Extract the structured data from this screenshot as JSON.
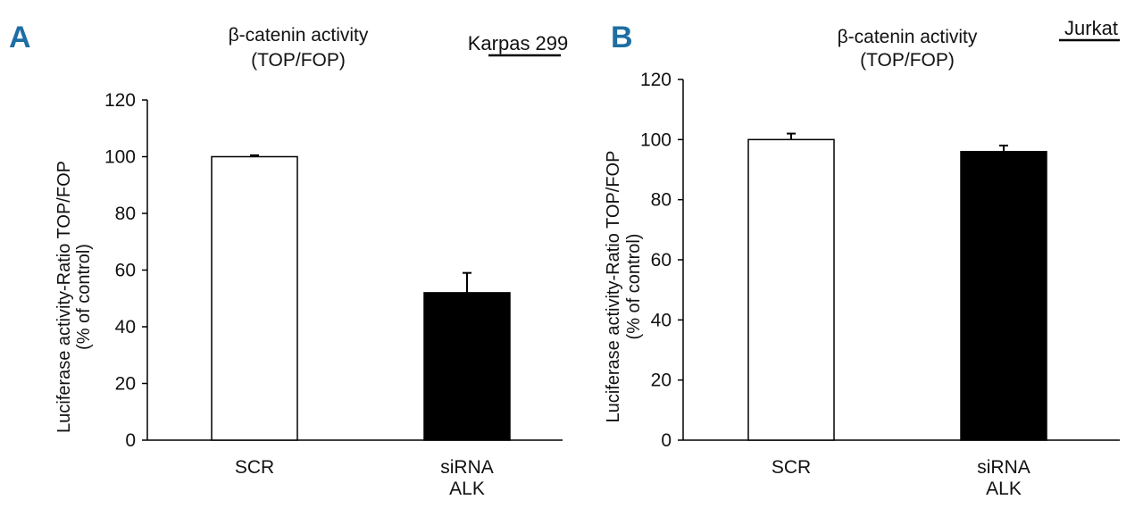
{
  "colors": {
    "panel_letter": "#1d6ea3",
    "bar_open": "#ffffff",
    "bar_filled": "#000000",
    "axis": "#000000"
  },
  "chart_data": [
    {
      "type": "bar",
      "panel": "A",
      "title_lines": [
        "β-catenin activity",
        "(TOP/FOP)"
      ],
      "cell_line": "Karpas 299",
      "ylabel_lines": [
        "Luciferase activity-Ratio TOP/FOP",
        "(% of control)"
      ],
      "ylim": [
        0,
        120
      ],
      "yticks": [
        0,
        20,
        40,
        60,
        80,
        100,
        120
      ],
      "categories": [
        {
          "lines": [
            "SCR"
          ],
          "value": 100,
          "error": 0.5,
          "fill": "open"
        },
        {
          "lines": [
            "siRNA",
            "ALK"
          ],
          "value": 52,
          "error": 7,
          "fill": "filled"
        }
      ]
    },
    {
      "type": "bar",
      "panel": "B",
      "title_lines": [
        "β-catenin activity",
        "(TOP/FOP)"
      ],
      "cell_line": "Jurkat",
      "ylabel_lines": [
        "Luciferase activity-Ratio TOP/FOP",
        "(% of control)"
      ],
      "ylim": [
        0,
        120
      ],
      "yticks": [
        0,
        20,
        40,
        60,
        80,
        100,
        120
      ],
      "categories": [
        {
          "lines": [
            "SCR"
          ],
          "value": 100,
          "error": 2,
          "fill": "open"
        },
        {
          "lines": [
            "siRNA",
            "ALK"
          ],
          "value": 96,
          "error": 2,
          "fill": "filled"
        }
      ]
    }
  ]
}
